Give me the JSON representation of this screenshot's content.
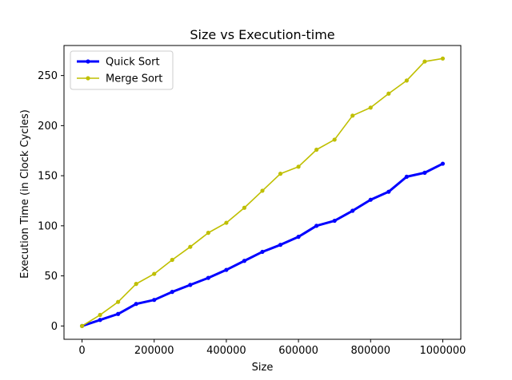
{
  "chart_data": {
    "type": "line",
    "title": "Size vs Execution-time",
    "xlabel": "Size",
    "ylabel": "Execution Time (in Clock Cycles)",
    "xlim": [
      -50000,
      1050000
    ],
    "ylim": [
      -13.3,
      280
    ],
    "x_ticks": [
      0,
      200000,
      400000,
      600000,
      800000,
      1000000
    ],
    "x_tick_labels": [
      "0",
      "200000",
      "400000",
      "600000",
      "800000",
      "1000000"
    ],
    "y_ticks": [
      0,
      50,
      100,
      150,
      200,
      250
    ],
    "y_tick_labels": [
      "0",
      "50",
      "100",
      "150",
      "200",
      "250"
    ],
    "grid": false,
    "legend_position": "top-left",
    "x": [
      0,
      50000,
      100000,
      150000,
      200000,
      250000,
      300000,
      350000,
      400000,
      450000,
      500000,
      550000,
      600000,
      650000,
      700000,
      750000,
      800000,
      850000,
      900000,
      950000,
      1000000
    ],
    "series": [
      {
        "name": "Quick Sort",
        "color": "#0000ff",
        "line_width": "thick",
        "values": [
          0,
          6,
          12,
          22,
          26,
          34,
          41,
          48,
          56,
          65,
          74,
          81,
          89,
          100,
          105,
          115,
          126,
          134,
          149,
          153,
          162
        ]
      },
      {
        "name": "Merge Sort",
        "color": "#bfbf00",
        "line_width": "normal",
        "values": [
          0,
          11,
          24,
          42,
          52,
          66,
          79,
          93,
          103,
          118,
          135,
          152,
          159,
          176,
          186,
          210,
          218,
          232,
          245,
          264,
          267
        ]
      }
    ]
  }
}
